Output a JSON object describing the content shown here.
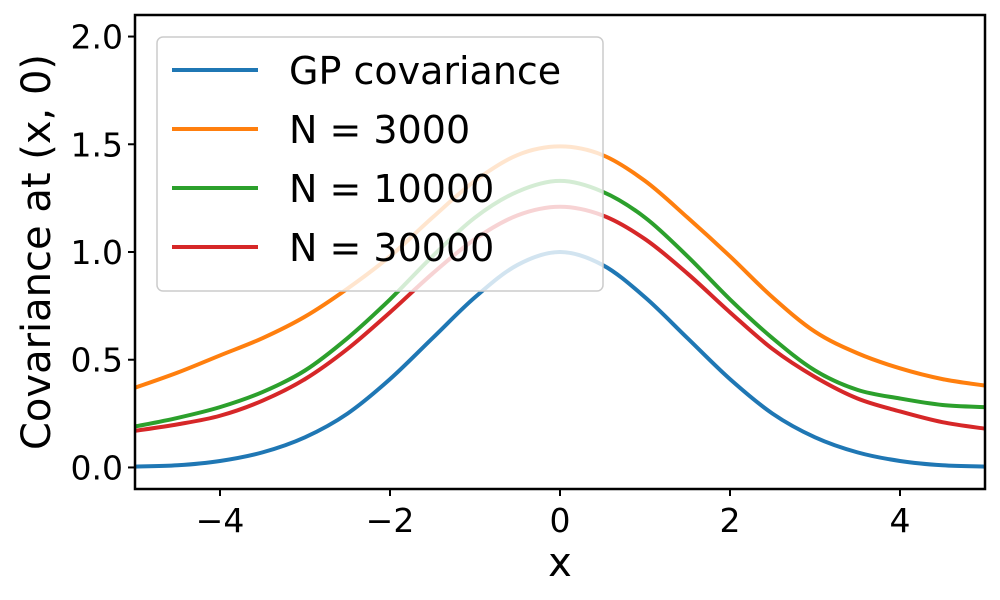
{
  "chart_data": {
    "type": "line",
    "xlabel": "x",
    "ylabel": "Covariance at (x, 0)",
    "xlim": [
      -5,
      5
    ],
    "ylim": [
      -0.1,
      2.1
    ],
    "xticks": [
      -4,
      -2,
      0,
      2,
      4
    ],
    "xtick_labels": [
      "−4",
      "−2",
      "0",
      "2",
      "4"
    ],
    "yticks": [
      0.0,
      0.5,
      1.0,
      1.5,
      2.0
    ],
    "ytick_labels": [
      "0.0",
      "0.5",
      "1.0",
      "1.5",
      "2.0"
    ],
    "grid": false,
    "legend_position": "top-left",
    "x": [
      -5,
      -4.5,
      -4,
      -3.5,
      -3,
      -2.5,
      -2,
      -1.5,
      -1,
      -0.5,
      0,
      0.5,
      1,
      1.5,
      2,
      2.5,
      3,
      3.5,
      4,
      4.5,
      5
    ],
    "series": [
      {
        "name": "GP covariance",
        "color": "#1f77b4",
        "values": [
          0.004,
          0.01,
          0.03,
          0.07,
          0.14,
          0.25,
          0.41,
          0.6,
          0.79,
          0.94,
          1.0,
          0.94,
          0.79,
          0.6,
          0.41,
          0.25,
          0.14,
          0.07,
          0.03,
          0.01,
          0.004
        ]
      },
      {
        "name": "N = 3000",
        "color": "#ff7f0e",
        "values": [
          0.37,
          0.44,
          0.52,
          0.6,
          0.7,
          0.83,
          0.98,
          1.16,
          1.33,
          1.45,
          1.49,
          1.45,
          1.33,
          1.16,
          0.98,
          0.79,
          0.63,
          0.53,
          0.46,
          0.41,
          0.38
        ]
      },
      {
        "name": "N = 10000",
        "color": "#2ca02c",
        "values": [
          0.19,
          0.23,
          0.28,
          0.35,
          0.45,
          0.6,
          0.78,
          0.98,
          1.16,
          1.28,
          1.33,
          1.28,
          1.16,
          0.98,
          0.78,
          0.6,
          0.45,
          0.36,
          0.32,
          0.29,
          0.28
        ]
      },
      {
        "name": "N = 30000",
        "color": "#d62728",
        "values": [
          0.17,
          0.2,
          0.24,
          0.31,
          0.41,
          0.55,
          0.72,
          0.9,
          1.06,
          1.17,
          1.21,
          1.17,
          1.06,
          0.9,
          0.72,
          0.55,
          0.42,
          0.32,
          0.26,
          0.21,
          0.18
        ]
      }
    ]
  }
}
